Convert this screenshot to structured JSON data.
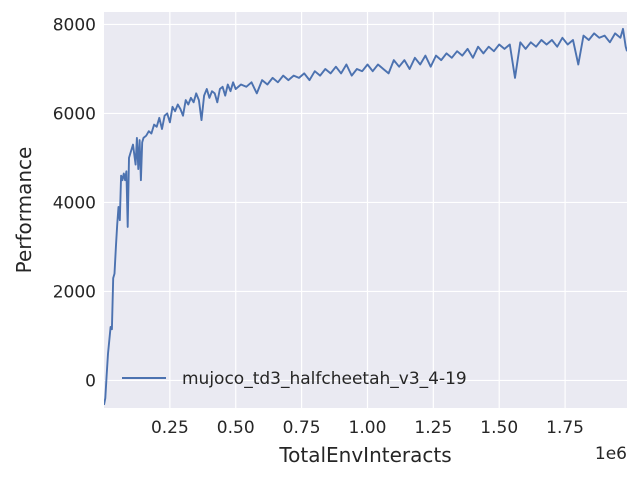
{
  "chart_data": {
    "type": "line",
    "title": "",
    "xlabel": "TotalEnvInteracts",
    "ylabel": "Performance",
    "x_offset_label": "1e6",
    "xlim": [
      0.0,
      1.985
    ],
    "ylim": [
      -620,
      8280
    ],
    "xticks": [
      0.25,
      0.5,
      0.75,
      1.0,
      1.25,
      1.5,
      1.75
    ],
    "xtick_labels": [
      "0.25",
      "0.50",
      "0.75",
      "1.00",
      "1.25",
      "1.50",
      "1.75"
    ],
    "yticks": [
      0,
      2000,
      4000,
      6000,
      8000
    ],
    "ytick_labels": [
      "0",
      "2000",
      "4000",
      "6000",
      "8000"
    ],
    "grid": true,
    "background": "#eaeaf2",
    "legend_position": "lower-left",
    "series": [
      {
        "name": "mujoco_td3_halfcheetah_v3_4-19",
        "color": "#4c72b0",
        "points": [
          [
            0.0,
            -550
          ],
          [
            0.005,
            -400
          ],
          [
            0.01,
            100
          ],
          [
            0.015,
            600
          ],
          [
            0.02,
            900
          ],
          [
            0.025,
            1200
          ],
          [
            0.03,
            1150
          ],
          [
            0.035,
            2300
          ],
          [
            0.04,
            2400
          ],
          [
            0.045,
            3000
          ],
          [
            0.05,
            3500
          ],
          [
            0.055,
            3900
          ],
          [
            0.06,
            3600
          ],
          [
            0.065,
            4600
          ],
          [
            0.07,
            4500
          ],
          [
            0.075,
            4650
          ],
          [
            0.08,
            4500
          ],
          [
            0.085,
            4700
          ],
          [
            0.09,
            3450
          ],
          [
            0.095,
            5000
          ],
          [
            0.1,
            5100
          ],
          [
            0.11,
            5300
          ],
          [
            0.12,
            4850
          ],
          [
            0.125,
            5450
          ],
          [
            0.13,
            4750
          ],
          [
            0.135,
            5400
          ],
          [
            0.14,
            4500
          ],
          [
            0.145,
            5350
          ],
          [
            0.15,
            5450
          ],
          [
            0.16,
            5500
          ],
          [
            0.17,
            5600
          ],
          [
            0.18,
            5550
          ],
          [
            0.19,
            5750
          ],
          [
            0.2,
            5700
          ],
          [
            0.21,
            5900
          ],
          [
            0.22,
            5650
          ],
          [
            0.23,
            5950
          ],
          [
            0.24,
            6000
          ],
          [
            0.25,
            5800
          ],
          [
            0.26,
            6150
          ],
          [
            0.27,
            6050
          ],
          [
            0.28,
            6200
          ],
          [
            0.29,
            6100
          ],
          [
            0.3,
            5950
          ],
          [
            0.31,
            6300
          ],
          [
            0.32,
            6200
          ],
          [
            0.33,
            6350
          ],
          [
            0.34,
            6250
          ],
          [
            0.35,
            6450
          ],
          [
            0.36,
            6300
          ],
          [
            0.37,
            5850
          ],
          [
            0.38,
            6400
          ],
          [
            0.39,
            6550
          ],
          [
            0.4,
            6350
          ],
          [
            0.41,
            6500
          ],
          [
            0.42,
            6450
          ],
          [
            0.43,
            6250
          ],
          [
            0.44,
            6550
          ],
          [
            0.45,
            6600
          ],
          [
            0.46,
            6400
          ],
          [
            0.47,
            6650
          ],
          [
            0.48,
            6500
          ],
          [
            0.49,
            6700
          ],
          [
            0.5,
            6550
          ],
          [
            0.52,
            6650
          ],
          [
            0.54,
            6600
          ],
          [
            0.56,
            6700
          ],
          [
            0.58,
            6450
          ],
          [
            0.6,
            6750
          ],
          [
            0.62,
            6650
          ],
          [
            0.64,
            6800
          ],
          [
            0.66,
            6700
          ],
          [
            0.68,
            6850
          ],
          [
            0.7,
            6750
          ],
          [
            0.72,
            6850
          ],
          [
            0.74,
            6800
          ],
          [
            0.76,
            6900
          ],
          [
            0.78,
            6750
          ],
          [
            0.8,
            6950
          ],
          [
            0.82,
            6850
          ],
          [
            0.84,
            7000
          ],
          [
            0.86,
            6900
          ],
          [
            0.88,
            7050
          ],
          [
            0.9,
            6900
          ],
          [
            0.92,
            7100
          ],
          [
            0.94,
            6850
          ],
          [
            0.96,
            7000
          ],
          [
            0.98,
            6950
          ],
          [
            1.0,
            7100
          ],
          [
            1.02,
            6950
          ],
          [
            1.04,
            7100
          ],
          [
            1.06,
            7000
          ],
          [
            1.08,
            6900
          ],
          [
            1.1,
            7200
          ],
          [
            1.12,
            7050
          ],
          [
            1.14,
            7200
          ],
          [
            1.16,
            7000
          ],
          [
            1.18,
            7250
          ],
          [
            1.2,
            7100
          ],
          [
            1.22,
            7300
          ],
          [
            1.24,
            7050
          ],
          [
            1.26,
            7300
          ],
          [
            1.28,
            7200
          ],
          [
            1.3,
            7350
          ],
          [
            1.32,
            7250
          ],
          [
            1.34,
            7400
          ],
          [
            1.36,
            7300
          ],
          [
            1.38,
            7450
          ],
          [
            1.4,
            7250
          ],
          [
            1.42,
            7500
          ],
          [
            1.44,
            7350
          ],
          [
            1.46,
            7500
          ],
          [
            1.48,
            7400
          ],
          [
            1.5,
            7550
          ],
          [
            1.52,
            7450
          ],
          [
            1.54,
            7550
          ],
          [
            1.56,
            6800
          ],
          [
            1.58,
            7600
          ],
          [
            1.6,
            7450
          ],
          [
            1.62,
            7600
          ],
          [
            1.64,
            7500
          ],
          [
            1.66,
            7650
          ],
          [
            1.68,
            7550
          ],
          [
            1.7,
            7650
          ],
          [
            1.72,
            7500
          ],
          [
            1.74,
            7700
          ],
          [
            1.76,
            7550
          ],
          [
            1.78,
            7650
          ],
          [
            1.8,
            7100
          ],
          [
            1.82,
            7750
          ],
          [
            1.84,
            7650
          ],
          [
            1.86,
            7800
          ],
          [
            1.88,
            7700
          ],
          [
            1.9,
            7750
          ],
          [
            1.92,
            7600
          ],
          [
            1.94,
            7800
          ],
          [
            1.96,
            7700
          ],
          [
            1.97,
            7900
          ],
          [
            1.98,
            7500
          ],
          [
            1.985,
            7400
          ]
        ]
      }
    ]
  }
}
